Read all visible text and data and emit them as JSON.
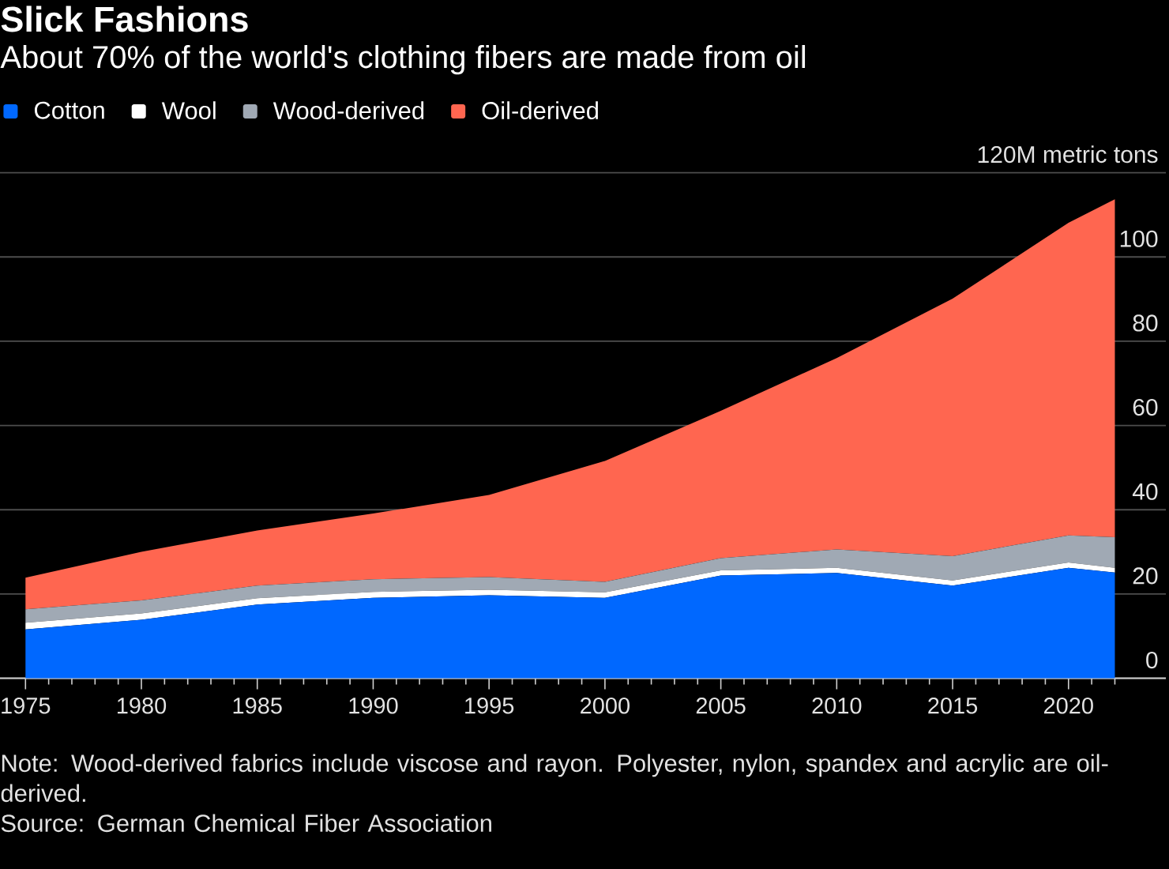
{
  "chart_data": {
    "type": "area",
    "title": "Slick Fashions",
    "subtitle": "About 70% of the world's clothing fibers are made from oil",
    "x": [
      1975,
      1980,
      1985,
      1990,
      1995,
      2000,
      2005,
      2010,
      2015,
      2020,
      2022
    ],
    "series": [
      {
        "name": "Cotton",
        "color": "#0068ff",
        "values": [
          11.6,
          13.9,
          17.5,
          19.1,
          19.7,
          19.1,
          24.4,
          25.0,
          22.0,
          26.2,
          25.1
        ]
      },
      {
        "name": "Wool",
        "color": "#ffffff",
        "values": [
          1.6,
          1.5,
          1.5,
          1.4,
          1.3,
          1.3,
          1.2,
          1.2,
          1.2,
          1.3,
          1.1
        ]
      },
      {
        "name": "Wood-derived",
        "color": "#a0a9b4",
        "values": [
          3.2,
          3.1,
          3.0,
          3.0,
          3.0,
          2.5,
          2.9,
          4.4,
          5.8,
          6.4,
          7.3
        ]
      },
      {
        "name": "Oil-derived",
        "color": "#ff6650",
        "values": [
          7.5,
          11.5,
          13.1,
          15.6,
          19.5,
          28.7,
          35.0,
          45.4,
          61.1,
          74.2,
          80.2
        ]
      }
    ],
    "stacked": true,
    "xlim": [
      1973.9,
      2024.2
    ],
    "ylim": [
      0,
      120
    ],
    "xticks": [
      1975,
      {
        "value": 1976,
        "label": null
      },
      {
        "value": 1977,
        "label": null
      },
      {
        "value": 1978,
        "label": null
      },
      {
        "value": 1979,
        "label": null
      },
      1980,
      {
        "value": 1981,
        "label": null
      },
      {
        "value": 1982,
        "label": null
      },
      {
        "value": 1983,
        "label": null
      },
      {
        "value": 1984,
        "label": null
      },
      1985,
      {
        "value": 1986,
        "label": null
      },
      {
        "value": 1987,
        "label": null
      },
      {
        "value": 1988,
        "label": null
      },
      {
        "value": 1989,
        "label": null
      },
      1990,
      {
        "value": 1991,
        "label": null
      },
      {
        "value": 1992,
        "label": null
      },
      {
        "value": 1993,
        "label": null
      },
      {
        "value": 1994,
        "label": null
      },
      1995,
      {
        "value": 1996,
        "label": null
      },
      {
        "value": 1997,
        "label": null
      },
      {
        "value": 1998,
        "label": null
      },
      {
        "value": 1999,
        "label": null
      },
      2000,
      {
        "value": 2001,
        "label": null
      },
      {
        "value": 2002,
        "label": null
      },
      {
        "value": 2003,
        "label": null
      },
      {
        "value": 2004,
        "label": null
      },
      2005,
      {
        "value": 2006,
        "label": null
      },
      {
        "value": 2007,
        "label": null
      },
      {
        "value": 2008,
        "label": null
      },
      {
        "value": 2009,
        "label": null
      },
      2010,
      {
        "value": 2011,
        "label": null
      },
      {
        "value": 2012,
        "label": null
      },
      {
        "value": 2013,
        "label": null
      },
      {
        "value": 2014,
        "label": null
      },
      2015,
      {
        "value": 2016,
        "label": null
      },
      {
        "value": 2017,
        "label": null
      },
      {
        "value": 2018,
        "label": null
      },
      {
        "value": 2019,
        "label": null
      },
      2020,
      {
        "value": 2021,
        "label": null
      },
      {
        "value": 2022,
        "label": null
      }
    ],
    "yticks": [
      0,
      20,
      40,
      60,
      80,
      100,
      {
        "value": 120,
        "label": "120M metric tons"
      }
    ],
    "grid": "y",
    "legend": "top left",
    "annotations": [
      "Note: Wood-derived fabrics include viscose and rayon. Polyester, nylon, spandex and acrylic are oil-derived.",
      "Source: German Chemical Fiber Association"
    ]
  }
}
